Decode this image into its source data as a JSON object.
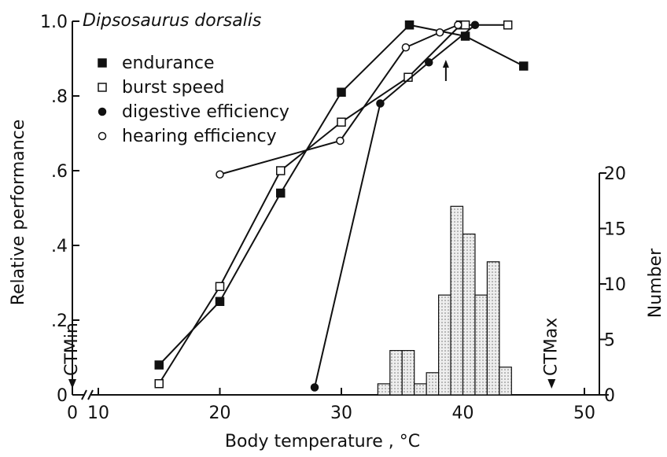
{
  "chart_data": {
    "type": "line",
    "title": "Dipsosaurus dorsalis",
    "xlabel": "Body temperature , °C",
    "ylabel": "Relative performance",
    "y2label": "Number",
    "xlim": [
      0,
      52
    ],
    "ylim": [
      0,
      1
    ],
    "y2lim": [
      0,
      20
    ],
    "xticks": [
      0,
      10,
      20,
      30,
      40,
      50
    ],
    "yticks": [
      {
        "value": 0,
        "label": "0"
      },
      {
        "value": 0.2,
        "label": ".2"
      },
      {
        "value": 0.4,
        "label": ".4"
      },
      {
        "value": 0.6,
        "label": ".6"
      },
      {
        "value": 0.8,
        "label": ".8"
      },
      {
        "value": 1,
        "label": "1.0"
      }
    ],
    "y2ticks": [
      0,
      5,
      10,
      15,
      20
    ],
    "series": [
      {
        "name": "endurance",
        "marker": "square",
        "filled": true,
        "color": "#111",
        "x": [
          15,
          20,
          25,
          30,
          35.6,
          40.2,
          45
        ],
        "values": [
          0.08,
          0.25,
          0.54,
          0.81,
          0.99,
          0.96,
          0.88
        ]
      },
      {
        "name": "burst speed",
        "marker": "square",
        "filled": false,
        "color": "#111",
        "x": [
          15,
          20,
          25,
          30,
          35.5,
          39.8,
          40.2,
          43.7
        ],
        "values": [
          0.03,
          0.29,
          0.6,
          0.73,
          0.85,
          0.99,
          0.99,
          0.99
        ]
      },
      {
        "name": "digestive efficiency",
        "marker": "circle",
        "filled": true,
        "color": "#111",
        "x": [
          27.8,
          33.2,
          37.2,
          41
        ],
        "values": [
          0.02,
          0.78,
          0.89,
          0.99
        ]
      },
      {
        "name": "hearing efficiency",
        "marker": "circle",
        "filled": false,
        "color": "#111",
        "x": [
          20,
          29.9,
          35.3,
          38.1,
          39.6
        ],
        "values": [
          0.59,
          0.68,
          0.93,
          0.97,
          0.99
        ]
      }
    ],
    "histogram": {
      "axis": "y2",
      "bins": [
        33,
        34,
        35,
        36,
        37,
        38,
        39,
        40,
        41,
        42,
        43,
        44
      ],
      "counts": [
        1,
        4,
        4,
        1,
        2,
        9,
        17,
        14.5,
        9,
        12,
        2.5
      ]
    },
    "annotations": [
      "CTMin",
      "CTMax"
    ]
  }
}
